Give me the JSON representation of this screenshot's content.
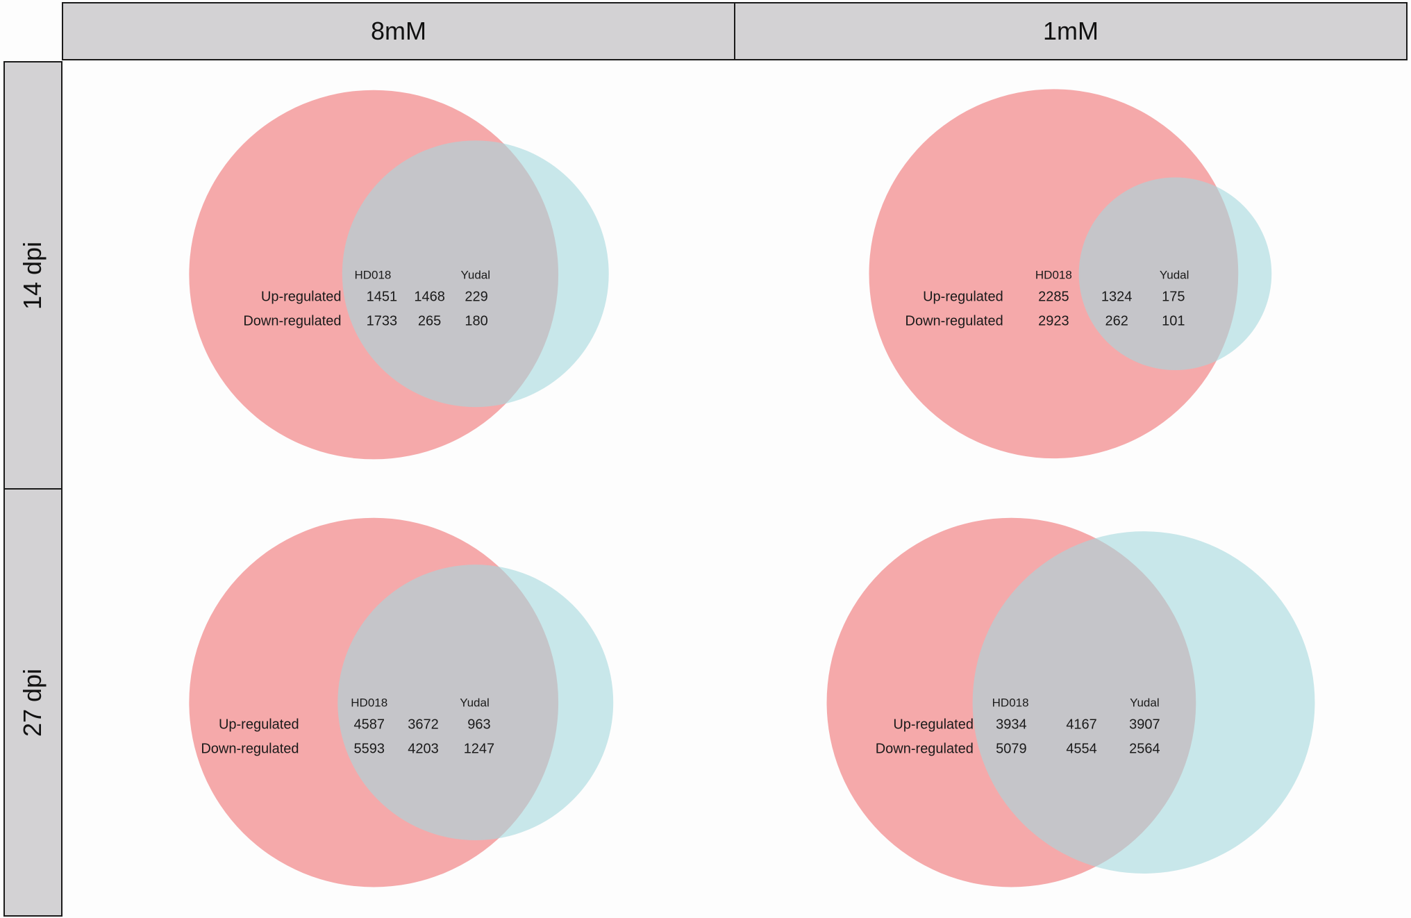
{
  "columns": [
    "8mM",
    "1mM"
  ],
  "rows": [
    "14 dpi",
    "27 dpi"
  ],
  "colors": {
    "hd018_circle": "#f06c6e",
    "yudal_circle": "#a5d8dd",
    "header_fill": "#d3d2d4"
  },
  "panels": [
    {
      "column": "8mM",
      "row": "14 dpi",
      "set_labels": [
        "HD018",
        "Yudal"
      ],
      "up_label": "Up-regulated",
      "down_label": "Down-regulated",
      "up": [
        "1451",
        "1468",
        "229"
      ],
      "down": [
        "1733",
        "265",
        "180"
      ]
    },
    {
      "column": "1mM",
      "row": "14 dpi",
      "set_labels": [
        "HD018",
        "Yudal"
      ],
      "up_label": "Up-regulated",
      "down_label": "Down-regulated",
      "up": [
        "2285",
        "1324",
        "175"
      ],
      "down": [
        "2923",
        "262",
        "101"
      ]
    },
    {
      "column": "8mM",
      "row": "27 dpi",
      "set_labels": [
        "HD018",
        "Yudal"
      ],
      "up_label": "Up-regulated",
      "down_label": "Down-regulated",
      "up": [
        "4587",
        "3672",
        "963"
      ],
      "down": [
        "5593",
        "4203",
        "1247"
      ]
    },
    {
      "column": "1mM",
      "row": "27 dpi",
      "set_labels": [
        "HD018",
        "Yudal"
      ],
      "up_label": "Up-regulated",
      "down_label": "Down-regulated",
      "up": [
        "3934",
        "4167",
        "3907"
      ],
      "down": [
        "5079",
        "4554",
        "2564"
      ]
    }
  ]
}
